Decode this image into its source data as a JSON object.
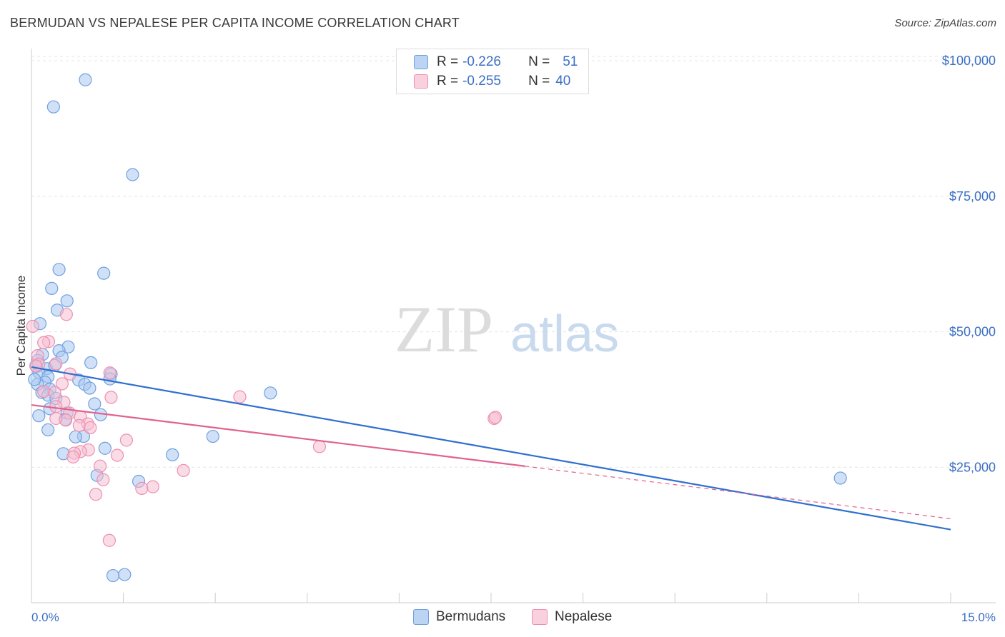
{
  "title": "BERMUDAN VS NEPALESE PER CAPITA INCOME CORRELATION CHART",
  "source": "Source: ZipAtlas.com",
  "watermark": {
    "zip": "ZIP",
    "atlas": "atlas"
  },
  "legend": {
    "rows": [
      {
        "r_label": "R =",
        "r_value": "-0.226",
        "n_label": "N =",
        "n_value": "51",
        "color": "#a9c8f0",
        "border": "#6fa0e0"
      },
      {
        "r_label": "R =",
        "r_value": "-0.255",
        "n_label": "N =",
        "n_value": "40",
        "color": "#f6bfd2",
        "border": "#ee8fb0"
      }
    ]
  },
  "bottom_legend": [
    {
      "label": "Bermudans",
      "color": "#a9c8f0",
      "border": "#6fa0e0"
    },
    {
      "label": "Nepalese",
      "color": "#f6bfd2",
      "border": "#ee8fb0"
    }
  ],
  "chart_data": {
    "type": "scatter",
    "title": "BERMUDAN VS NEPALESE PER CAPITA INCOME CORRELATION CHART",
    "xlabel": "",
    "ylabel": "Per Capita Income",
    "xlim": [
      0,
      15
    ],
    "ylim": [
      0,
      102000
    ],
    "x_tick_labels": [
      "0.0%",
      "15.0%"
    ],
    "y_ticks": [
      25000,
      50000,
      75000,
      100000
    ],
    "y_tick_labels": [
      "$25,000",
      "$50,000",
      "$75,000",
      "$100,000"
    ],
    "series": [
      {
        "name": "Bermudans",
        "color": "#6fa0e0",
        "fill": "#a9c8f0",
        "line_color": "#2f6fd0",
        "trend": {
          "x0": 0,
          "y0": 43500,
          "x1": 15,
          "y1": 13500
        },
        "points": [
          [
            0.88,
            96500
          ],
          [
            0.36,
            91500
          ],
          [
            1.65,
            79000
          ],
          [
            0.45,
            61500
          ],
          [
            1.18,
            60800
          ],
          [
            0.33,
            58000
          ],
          [
            0.58,
            55700
          ],
          [
            0.42,
            54000
          ],
          [
            0.14,
            51500
          ],
          [
            0.6,
            47200
          ],
          [
            0.45,
            46500
          ],
          [
            0.18,
            45800
          ],
          [
            0.5,
            45300
          ],
          [
            0.1,
            44700
          ],
          [
            0.97,
            44300
          ],
          [
            0.08,
            43600
          ],
          [
            0.25,
            43200
          ],
          [
            0.38,
            43800
          ],
          [
            0.12,
            42500
          ],
          [
            1.3,
            42200
          ],
          [
            0.27,
            41700
          ],
          [
            1.28,
            41300
          ],
          [
            0.77,
            41100
          ],
          [
            0.22,
            40700
          ],
          [
            0.87,
            40300
          ],
          [
            0.1,
            40300
          ],
          [
            0.95,
            39600
          ],
          [
            0.3,
            39400
          ],
          [
            0.17,
            38800
          ],
          [
            0.27,
            38300
          ],
          [
            0.4,
            37700
          ],
          [
            1.03,
            36700
          ],
          [
            0.3,
            35800
          ],
          [
            0.58,
            35000
          ],
          [
            1.13,
            34700
          ],
          [
            0.12,
            34500
          ],
          [
            0.55,
            33800
          ],
          [
            0.27,
            31900
          ],
          [
            0.85,
            30700
          ],
          [
            0.72,
            30600
          ],
          [
            2.96,
            30700
          ],
          [
            3.9,
            38700
          ],
          [
            1.2,
            28500
          ],
          [
            0.52,
            27500
          ],
          [
            2.3,
            27300
          ],
          [
            1.07,
            23500
          ],
          [
            1.75,
            22400
          ],
          [
            13.2,
            23000
          ],
          [
            1.33,
            5000
          ],
          [
            1.52,
            5200
          ],
          [
            0.05,
            41200
          ]
        ]
      },
      {
        "name": "Nepalese",
        "color": "#ee8fb0",
        "fill": "#f6bfd2",
        "line_color": "#e0628e",
        "trend": {
          "x0": 0,
          "y0": 36500,
          "x1": 8.05,
          "y1": 25200
        },
        "trend_ext": {
          "x0": 8.05,
          "y0": 25200,
          "x1": 15,
          "y1": 15500
        },
        "points": [
          [
            0.57,
            53200
          ],
          [
            0.02,
            51000
          ],
          [
            0.28,
            48200
          ],
          [
            0.2,
            48000
          ],
          [
            0.1,
            45600
          ],
          [
            0.12,
            44000
          ],
          [
            0.4,
            44100
          ],
          [
            0.07,
            43700
          ],
          [
            0.63,
            42200
          ],
          [
            1.28,
            42400
          ],
          [
            0.5,
            40400
          ],
          [
            0.2,
            39000
          ],
          [
            0.38,
            38800
          ],
          [
            1.3,
            37900
          ],
          [
            3.4,
            38000
          ],
          [
            0.53,
            37000
          ],
          [
            0.4,
            36200
          ],
          [
            0.62,
            35000
          ],
          [
            0.8,
            34300
          ],
          [
            0.56,
            33700
          ],
          [
            0.92,
            33000
          ],
          [
            0.78,
            32700
          ],
          [
            0.96,
            32300
          ],
          [
            0.4,
            34000
          ],
          [
            1.55,
            30000
          ],
          [
            4.7,
            28800
          ],
          [
            7.55,
            34000
          ],
          [
            0.93,
            28200
          ],
          [
            0.8,
            27900
          ],
          [
            0.7,
            27600
          ],
          [
            0.68,
            26900
          ],
          [
            1.4,
            27200
          ],
          [
            1.12,
            25200
          ],
          [
            2.48,
            24400
          ],
          [
            1.17,
            22700
          ],
          [
            1.98,
            21400
          ],
          [
            1.8,
            21100
          ],
          [
            1.05,
            20000
          ],
          [
            1.27,
            11500
          ],
          [
            7.57,
            34200
          ]
        ]
      }
    ]
  }
}
